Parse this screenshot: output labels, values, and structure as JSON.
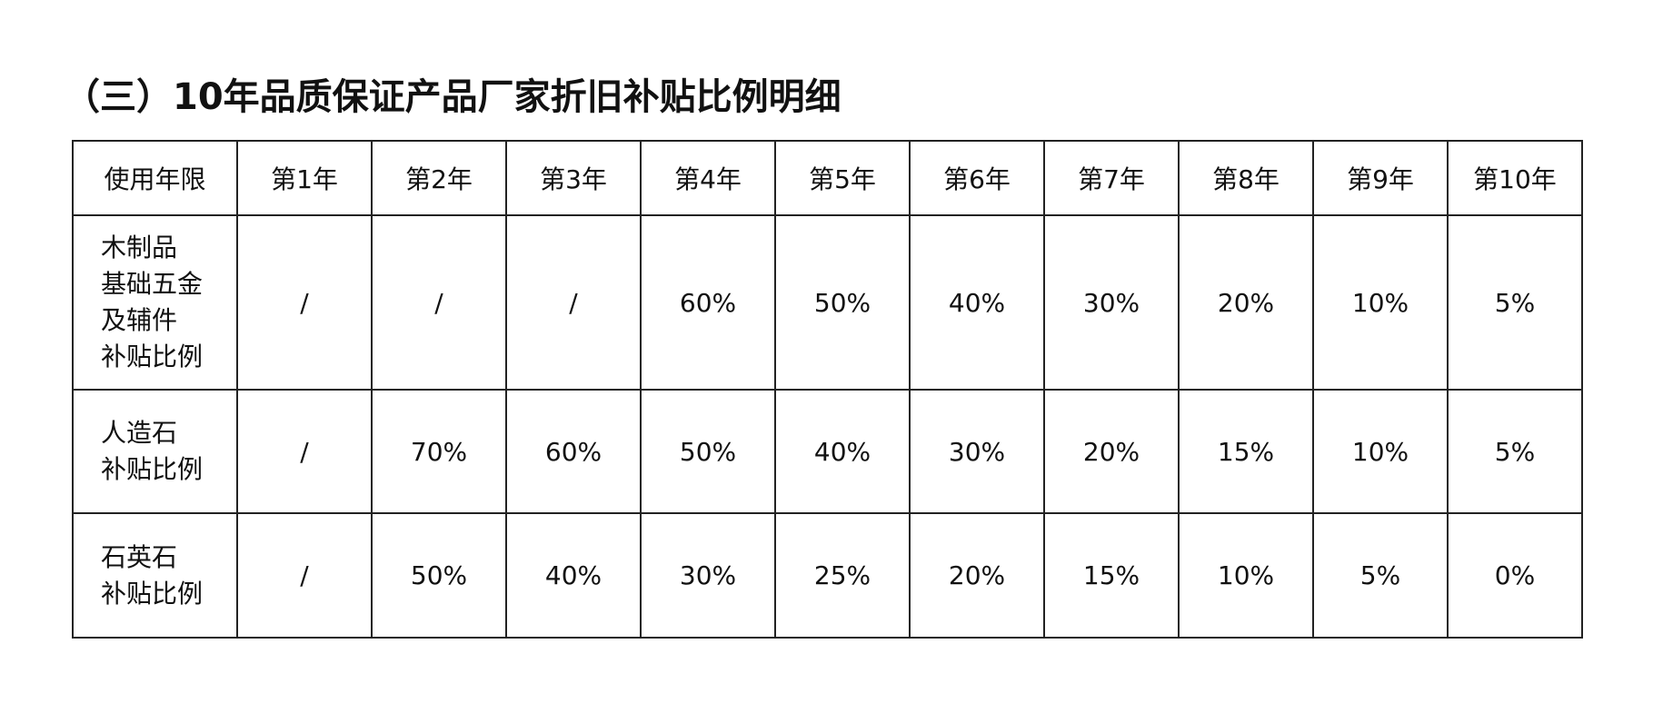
{
  "title": "（三）10年品质保证产品厂家折旧补贴比例明细",
  "table": {
    "header": [
      "使用年限",
      "第1年",
      "第2年",
      "第3年",
      "第4年",
      "第5年",
      "第6年",
      "第7年",
      "第8年",
      "第9年",
      "第10年"
    ],
    "rows": [
      {
        "label_lines": [
          "木制品",
          "基础五金",
          "及辅件",
          "补贴比例"
        ],
        "values": [
          "/",
          "/",
          "/",
          "60%",
          "50%",
          "40%",
          "30%",
          "20%",
          "10%",
          "5%"
        ]
      },
      {
        "label_lines": [
          "人造石",
          "补贴比例"
        ],
        "values": [
          "/",
          "70%",
          "60%",
          "50%",
          "40%",
          "30%",
          "20%",
          "15%",
          "10%",
          "5%"
        ]
      },
      {
        "label_lines": [
          "石英石",
          "补贴比例"
        ],
        "values": [
          "/",
          "50%",
          "40%",
          "30%",
          "25%",
          "20%",
          "15%",
          "10%",
          "5%",
          "0%"
        ]
      }
    ]
  }
}
